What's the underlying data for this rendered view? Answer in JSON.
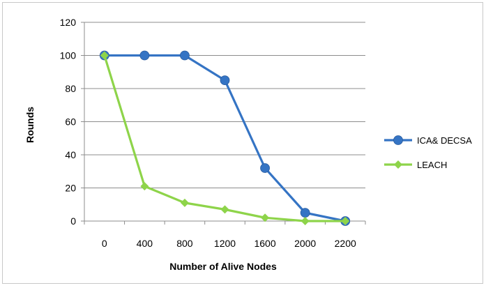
{
  "chart_data": {
    "type": "line",
    "title": "",
    "xlabel": "Number of Alive Nodes",
    "ylabel": "Rounds",
    "categories": [
      "0",
      "400",
      "800",
      "1200",
      "1600",
      "2000",
      "2200"
    ],
    "ylim": [
      0,
      120
    ],
    "yticks": [
      "0",
      "20",
      "40",
      "60",
      "80",
      "100",
      "120"
    ],
    "grid": "horizontal",
    "legend_position": "right",
    "series": [
      {
        "name": "ICA& DECSA",
        "values": [
          100,
          100,
          100,
          85,
          32,
          5,
          0
        ],
        "color": "#3574c4",
        "marker": "circle"
      },
      {
        "name": "LEACH",
        "values": [
          100,
          21,
          11,
          7,
          2,
          0,
          0
        ],
        "color": "#8ed44a",
        "marker": "diamond"
      }
    ]
  }
}
